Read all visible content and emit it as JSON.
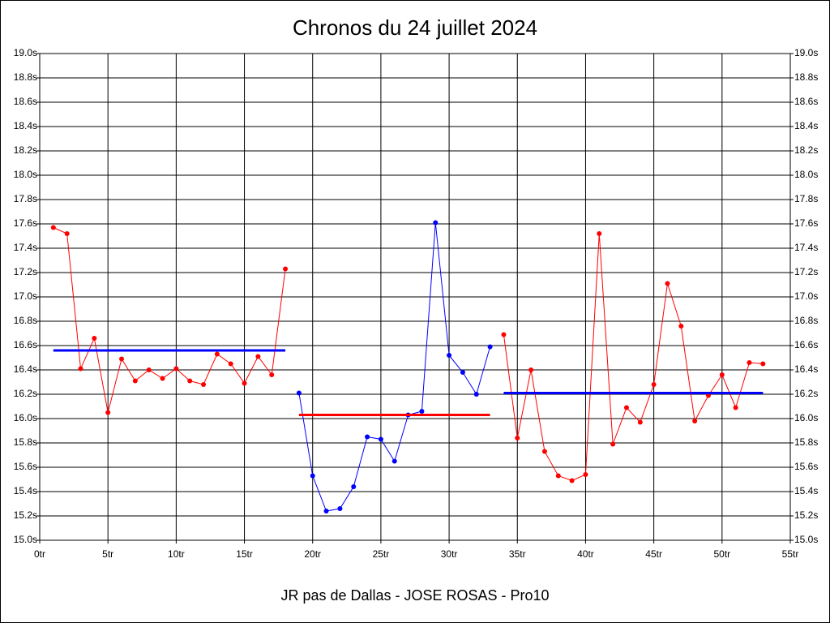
{
  "chart_data": {
    "type": "line",
    "title": "Chronos du 24 juillet 2024",
    "x_label": "JR pas de Dallas - JOSE ROSAS - Pro10",
    "xlim": [
      0,
      55
    ],
    "xticks": [
      {
        "value": 0,
        "label": "0tr"
      },
      {
        "value": 5,
        "label": "5tr"
      },
      {
        "value": 10,
        "label": "10tr"
      },
      {
        "value": 15,
        "label": "15tr"
      },
      {
        "value": 20,
        "label": "20tr"
      },
      {
        "value": 25,
        "label": "25tr"
      },
      {
        "value": 30,
        "label": "30tr"
      },
      {
        "value": 35,
        "label": "35tr"
      },
      {
        "value": 40,
        "label": "40tr"
      },
      {
        "value": 45,
        "label": "45tr"
      },
      {
        "value": 50,
        "label": "50tr"
      },
      {
        "value": 55,
        "label": "55tr"
      }
    ],
    "ylim": [
      15.0,
      19.0
    ],
    "yticks": [
      {
        "value": 15.0,
        "label": "15.0s"
      },
      {
        "value": 15.2,
        "label": "15.2s"
      },
      {
        "value": 15.4,
        "label": "15.4s"
      },
      {
        "value": 15.6,
        "label": "15.6s"
      },
      {
        "value": 15.8,
        "label": "15.8s"
      },
      {
        "value": 16.0,
        "label": "16.0s"
      },
      {
        "value": 16.2,
        "label": "16.2s"
      },
      {
        "value": 16.4,
        "label": "16.4s"
      },
      {
        "value": 16.6,
        "label": "16.6s"
      },
      {
        "value": 16.8,
        "label": "16.8s"
      },
      {
        "value": 17.0,
        "label": "17.0s"
      },
      {
        "value": 17.2,
        "label": "17.2s"
      },
      {
        "value": 17.4,
        "label": "17.4s"
      },
      {
        "value": 17.6,
        "label": "17.6s"
      },
      {
        "value": 17.8,
        "label": "17.8s"
      },
      {
        "value": 18.0,
        "label": "18.0s"
      },
      {
        "value": 18.2,
        "label": "18.2s"
      },
      {
        "value": 18.4,
        "label": "18.4s"
      },
      {
        "value": 18.6,
        "label": "18.6s"
      },
      {
        "value": 18.8,
        "label": "18.8s"
      },
      {
        "value": 19.0,
        "label": "19.0s"
      }
    ],
    "grid": true,
    "right_axis": true,
    "series": [
      {
        "color": "#ff0000",
        "markers": true,
        "line_width": 1,
        "x": [
          1,
          2,
          3,
          4,
          5,
          6,
          7,
          8,
          9,
          10,
          11,
          12,
          13,
          14,
          15,
          16,
          17,
          18
        ],
        "values": [
          17.57,
          17.52,
          16.41,
          16.66,
          16.05,
          16.49,
          16.31,
          16.4,
          16.33,
          16.41,
          16.31,
          16.28,
          16.53,
          16.45,
          16.29,
          16.51,
          16.36,
          17.23
        ]
      },
      {
        "color": "#0000ff",
        "markers": true,
        "line_width": 1,
        "x": [
          19,
          20,
          21,
          22,
          23,
          24,
          25,
          26,
          27,
          28,
          29,
          30,
          31,
          32,
          33
        ],
        "values": [
          16.21,
          15.53,
          15.24,
          15.26,
          15.44,
          15.85,
          15.83,
          15.65,
          16.03,
          16.06,
          17.61,
          16.52,
          16.38,
          16.2,
          16.59
        ]
      },
      {
        "color": "#ff0000",
        "markers": true,
        "line_width": 1,
        "x": [
          34,
          35,
          36,
          37,
          38,
          39,
          40,
          41,
          42,
          43,
          44,
          45,
          46,
          47,
          48,
          49,
          50,
          51,
          52,
          53
        ],
        "values": [
          16.69,
          15.84,
          16.4,
          15.73,
          15.53,
          15.49,
          15.54,
          17.52,
          15.79,
          16.09,
          15.97,
          16.28,
          17.11,
          16.76,
          15.98,
          16.19,
          16.36,
          16.09,
          16.46,
          16.45
        ]
      },
      {
        "color": "#0000ff",
        "markers": false,
        "line_width": 3,
        "x": [
          1,
          18
        ],
        "values": [
          16.56,
          16.56
        ]
      },
      {
        "color": "#ff0000",
        "markers": false,
        "line_width": 3,
        "x": [
          19,
          33
        ],
        "values": [
          16.03,
          16.03
        ]
      },
      {
        "color": "#0000ff",
        "markers": false,
        "line_width": 3,
        "x": [
          34,
          53
        ],
        "values": [
          16.21,
          16.21
        ]
      }
    ]
  }
}
